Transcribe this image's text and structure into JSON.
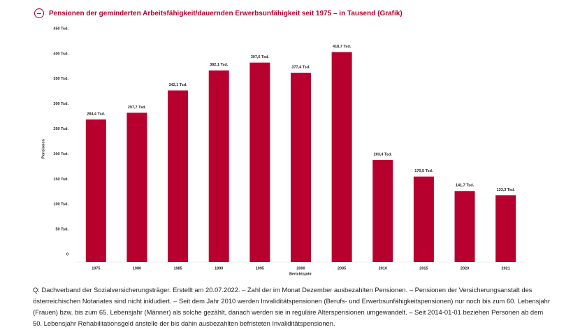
{
  "chart_data": {
    "type": "bar",
    "title": "Pensionen der geminderten Arbeitsfähigkeit/dauernden Erwerbsunfähigkeit seit 1975 – in Tausend (Grafik)",
    "categories": [
      "1975",
      "1980",
      "1985",
      "1990",
      "1995",
      "2000",
      "2005",
      "2010",
      "2015",
      "2020",
      "2021"
    ],
    "values": [
      284.4,
      297.7,
      342.1,
      382.1,
      397.6,
      377.4,
      418.7,
      203.4,
      170.5,
      141.7,
      133.3
    ],
    "value_labels": [
      "284,4 Tsd.",
      "297,7 Tsd.",
      "342,1 Tsd.",
      "382,1 Tsd.",
      "397,6 Tsd.",
      "377,4 Tsd.",
      "418,7 Tsd.",
      "203,4 Tsd.",
      "170,5 Tsd.",
      "141,7 Tsd.",
      "133,3 Tsd."
    ],
    "color": "#b8002e",
    "ylabel": "Pensionen",
    "xlabel": "Berichtsjahr",
    "ylim": [
      0,
      450
    ],
    "yticks": [
      0,
      {
        "value": 50,
        "label": "50 Tsd."
      },
      {
        "value": 100,
        "label": "100 Tsd."
      },
      {
        "value": 150,
        "label": "150 Tsd."
      },
      {
        "value": 200,
        "label": "200 Tsd."
      },
      {
        "value": 250,
        "label": "250 Tsd."
      },
      {
        "value": 300,
        "label": "300 Tsd."
      },
      {
        "value": 350,
        "label": "350 Tsd."
      },
      {
        "value": 400,
        "label": "400 Tsd."
      },
      {
        "value": 450,
        "label": "450 Tsd."
      }
    ],
    "grid": false,
    "note": "Q: Dachverband der Sozialversicherungsträger. Erstellt am 20.07.2022. – Zahl der im Monat Dezember ausbezahlten Pensionen. – Pensionen der Versicherungsanstalt des österreichischen Notariates sind nicht inkludiert. – Seit dem Jahr 2010 werden Invaliditätspensionen (Berufs- und Erwerbsunfähigkeitspensionen) nur noch bis zum 60. Lebensjahr (Frauen) bzw. bis zum 65. Lebensjahr (Männer) als solche gezählt, danach werden sie in reguläre Alterspensionen umgewandelt. – Seit 2014-01-01 beziehen Personen ab dem 50. Lebensjahr Rehabilitationsgeld anstelle der bis dahin ausbezahlten befristeten Invaliditätspensionen."
  }
}
